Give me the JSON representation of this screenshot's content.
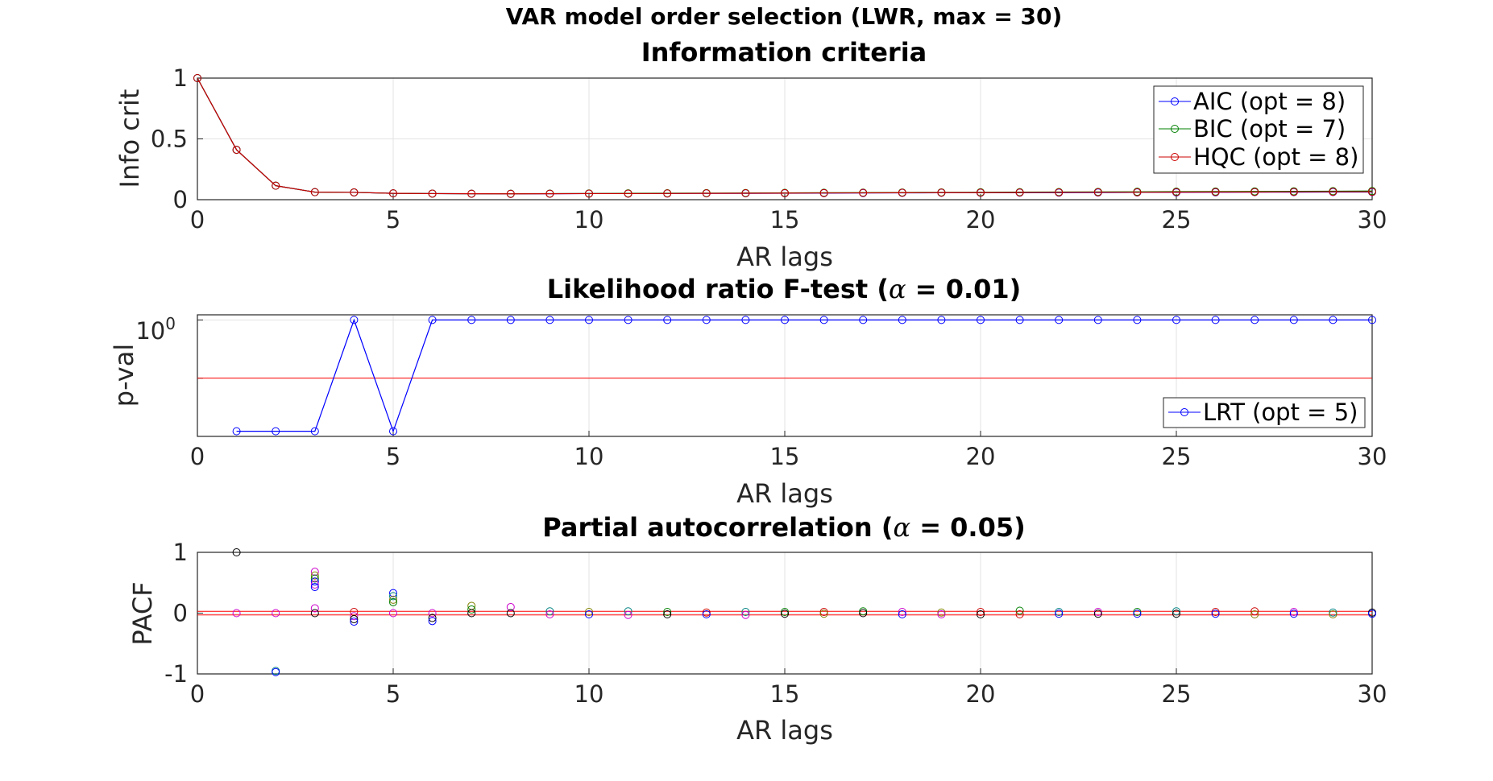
{
  "figure_title": "VAR model order selection (LWR, max = 30)",
  "chart_data": [
    {
      "type": "line",
      "title": "Information criteria",
      "xlabel": "AR lags",
      "ylabel": "Info crit",
      "xlim": [
        0,
        30
      ],
      "ylim": [
        0,
        1
      ],
      "xticks": [
        "0",
        "5",
        "10",
        "15",
        "20",
        "25",
        "30"
      ],
      "yticks": [
        "0",
        "0.5",
        "1"
      ],
      "grid": true,
      "legend_position": "top-right",
      "x": [
        0,
        1,
        2,
        3,
        4,
        5,
        6,
        7,
        8,
        9,
        10,
        11,
        12,
        13,
        14,
        15,
        16,
        17,
        18,
        19,
        20,
        21,
        22,
        23,
        24,
        25,
        26,
        27,
        28,
        29,
        30
      ],
      "series": [
        {
          "name": "AIC (opt = 8)",
          "color": "#0000ff",
          "values": [
            1,
            0.41,
            0.115,
            0.062,
            0.06,
            0.052,
            0.05,
            0.049,
            0.048,
            0.049,
            0.05,
            0.05,
            0.051,
            0.052,
            0.052,
            0.053,
            0.054,
            0.055,
            0.056,
            0.057,
            0.057,
            0.058,
            0.058,
            0.059,
            0.06,
            0.06,
            0.061,
            0.062,
            0.062,
            0.063,
            0.063
          ]
        },
        {
          "name": "BIC (opt = 7)",
          "color": "#008000",
          "values": [
            1,
            0.41,
            0.115,
            0.062,
            0.06,
            0.052,
            0.05,
            0.049,
            0.049,
            0.05,
            0.051,
            0.052,
            0.053,
            0.054,
            0.055,
            0.056,
            0.057,
            0.058,
            0.059,
            0.06,
            0.061,
            0.062,
            0.063,
            0.064,
            0.065,
            0.066,
            0.067,
            0.068,
            0.069,
            0.07,
            0.071
          ]
        },
        {
          "name": "HQC (opt = 8)",
          "color": "#cc0000",
          "values": [
            1,
            0.41,
            0.115,
            0.062,
            0.06,
            0.052,
            0.05,
            0.049,
            0.048,
            0.049,
            0.05,
            0.05,
            0.051,
            0.052,
            0.053,
            0.054,
            0.055,
            0.056,
            0.057,
            0.058,
            0.058,
            0.059,
            0.06,
            0.061,
            0.061,
            0.062,
            0.063,
            0.063,
            0.064,
            0.065,
            0.065
          ]
        }
      ]
    },
    {
      "type": "line",
      "title": "Likelihood ratio F-test (α = 0.01)",
      "title_main": "Likelihood ratio F-test (",
      "title_alpha": "α",
      "title_tail": " = 0.01)",
      "xlabel": "AR lags",
      "ylabel": "p-val",
      "xlim": [
        0,
        30
      ],
      "yscale": "log",
      "ylim": [
        0.0001,
        1.5
      ],
      "ytick_base": "10",
      "ytick_exp": "0",
      "grid": true,
      "alpha_line": {
        "value": 0.01,
        "color": "#ff0000"
      },
      "legend_position": "bottom-right",
      "x": [
        1,
        2,
        3,
        4,
        5,
        6,
        7,
        8,
        9,
        10,
        11,
        12,
        13,
        14,
        15,
        16,
        17,
        18,
        19,
        20,
        21,
        22,
        23,
        24,
        25,
        26,
        27,
        28,
        29,
        30
      ],
      "series": [
        {
          "name": "LRT (opt = 5)",
          "color": "#0000ff",
          "values": [
            0.00015,
            0.00015,
            0.00015,
            1,
            0.00015,
            1,
            1,
            1,
            1,
            1,
            1,
            1,
            1,
            1,
            1,
            1,
            1,
            1,
            1,
            1,
            1,
            1,
            1,
            1,
            1,
            1,
            1,
            1,
            1,
            1
          ]
        }
      ]
    },
    {
      "type": "scatter",
      "title": "Partial autocorrelation (α = 0.05)",
      "title_main": "Partial autocorrelation (",
      "title_alpha": "α",
      "title_tail": " = 0.05)",
      "xlabel": "AR lags",
      "ylabel": "PACF",
      "xlim": [
        0,
        30
      ],
      "ylim": [
        -1,
        1
      ],
      "yticks": [
        "-1",
        "0",
        "1"
      ],
      "grid": true,
      "significance_band": {
        "value": 0.03,
        "color": "#ff0000"
      },
      "points": [
        {
          "x": 1,
          "y": 1.0,
          "color": "#000000"
        },
        {
          "x": 1,
          "y": 0.0,
          "color": "#cc00cc"
        },
        {
          "x": 2,
          "y": -0.95,
          "color": "#008080"
        },
        {
          "x": 2,
          "y": -0.97,
          "color": "#0000ff"
        },
        {
          "x": 2,
          "y": 0.0,
          "color": "#cc00cc"
        },
        {
          "x": 3,
          "y": 0.68,
          "color": "#cc00cc"
        },
        {
          "x": 3,
          "y": 0.62,
          "color": "#808000"
        },
        {
          "x": 3,
          "y": 0.57,
          "color": "#008000"
        },
        {
          "x": 3,
          "y": 0.52,
          "color": "#0000ff"
        },
        {
          "x": 3,
          "y": 0.47,
          "color": "#cc00cc"
        },
        {
          "x": 3,
          "y": 0.43,
          "color": "#0000ff"
        },
        {
          "x": 3,
          "y": 0.08,
          "color": "#cc00cc"
        },
        {
          "x": 3,
          "y": 0.0,
          "color": "#000000"
        },
        {
          "x": 4,
          "y": 0.02,
          "color": "#cc0000"
        },
        {
          "x": 4,
          "y": -0.05,
          "color": "#cc00cc"
        },
        {
          "x": 4,
          "y": -0.1,
          "color": "#000000"
        },
        {
          "x": 4,
          "y": -0.14,
          "color": "#0000ff"
        },
        {
          "x": 5,
          "y": 0.33,
          "color": "#0000ff"
        },
        {
          "x": 5,
          "y": 0.28,
          "color": "#008080"
        },
        {
          "x": 5,
          "y": 0.22,
          "color": "#808000"
        },
        {
          "x": 5,
          "y": 0.18,
          "color": "#008000"
        },
        {
          "x": 5,
          "y": 0.0,
          "color": "#cc00cc"
        },
        {
          "x": 6,
          "y": 0.0,
          "color": "#cc00cc"
        },
        {
          "x": 6,
          "y": -0.08,
          "color": "#000000"
        },
        {
          "x": 6,
          "y": -0.13,
          "color": "#0000ff"
        },
        {
          "x": 7,
          "y": 0.12,
          "color": "#808000"
        },
        {
          "x": 7,
          "y": 0.06,
          "color": "#008000"
        },
        {
          "x": 7,
          "y": 0.0,
          "color": "#000000"
        },
        {
          "x": 8,
          "y": 0.1,
          "color": "#cc00cc"
        },
        {
          "x": 8,
          "y": 0.0,
          "color": "#000000"
        },
        {
          "x": 9,
          "y": 0.03,
          "color": "#008080"
        },
        {
          "x": 9,
          "y": -0.02,
          "color": "#cc00cc"
        },
        {
          "x": 10,
          "y": 0.02,
          "color": "#808000"
        },
        {
          "x": 10,
          "y": -0.02,
          "color": "#0000ff"
        },
        {
          "x": 11,
          "y": 0.03,
          "color": "#008080"
        },
        {
          "x": 11,
          "y": -0.03,
          "color": "#cc00cc"
        },
        {
          "x": 12,
          "y": 0.02,
          "color": "#008000"
        },
        {
          "x": 12,
          "y": -0.02,
          "color": "#000000"
        },
        {
          "x": 13,
          "y": 0.01,
          "color": "#cc0000"
        },
        {
          "x": 13,
          "y": -0.02,
          "color": "#0000ff"
        },
        {
          "x": 14,
          "y": 0.02,
          "color": "#008080"
        },
        {
          "x": 14,
          "y": -0.03,
          "color": "#cc00cc"
        },
        {
          "x": 15,
          "y": 0.02,
          "color": "#008000"
        },
        {
          "x": 15,
          "y": -0.01,
          "color": "#000000"
        },
        {
          "x": 16,
          "y": 0.02,
          "color": "#cc0000"
        },
        {
          "x": 16,
          "y": -0.01,
          "color": "#808000"
        },
        {
          "x": 17,
          "y": 0.03,
          "color": "#008000"
        },
        {
          "x": 17,
          "y": 0.0,
          "color": "#000000"
        },
        {
          "x": 18,
          "y": 0.02,
          "color": "#cc00cc"
        },
        {
          "x": 18,
          "y": -0.02,
          "color": "#0000ff"
        },
        {
          "x": 19,
          "y": 0.01,
          "color": "#808000"
        },
        {
          "x": 19,
          "y": -0.02,
          "color": "#cc00cc"
        },
        {
          "x": 20,
          "y": 0.02,
          "color": "#cc0000"
        },
        {
          "x": 20,
          "y": -0.02,
          "color": "#000000"
        },
        {
          "x": 21,
          "y": 0.04,
          "color": "#008000"
        },
        {
          "x": 21,
          "y": -0.02,
          "color": "#cc0000"
        },
        {
          "x": 22,
          "y": 0.02,
          "color": "#008080"
        },
        {
          "x": 22,
          "y": -0.01,
          "color": "#0000ff"
        },
        {
          "x": 23,
          "y": 0.02,
          "color": "#cc00cc"
        },
        {
          "x": 23,
          "y": -0.01,
          "color": "#000000"
        },
        {
          "x": 24,
          "y": 0.02,
          "color": "#008000"
        },
        {
          "x": 24,
          "y": -0.01,
          "color": "#0000ff"
        },
        {
          "x": 25,
          "y": 0.03,
          "color": "#008080"
        },
        {
          "x": 25,
          "y": -0.01,
          "color": "#000000"
        },
        {
          "x": 26,
          "y": 0.02,
          "color": "#cc0000"
        },
        {
          "x": 26,
          "y": -0.01,
          "color": "#0000ff"
        },
        {
          "x": 27,
          "y": 0.03,
          "color": "#cc0000"
        },
        {
          "x": 27,
          "y": -0.02,
          "color": "#808000"
        },
        {
          "x": 28,
          "y": 0.02,
          "color": "#cc00cc"
        },
        {
          "x": 28,
          "y": -0.01,
          "color": "#0000ff"
        },
        {
          "x": 29,
          "y": 0.01,
          "color": "#008080"
        },
        {
          "x": 29,
          "y": -0.02,
          "color": "#808000"
        },
        {
          "x": 30,
          "y": 0.01,
          "color": "#000000"
        },
        {
          "x": 30,
          "y": -0.01,
          "color": "#0000ff"
        }
      ]
    }
  ]
}
